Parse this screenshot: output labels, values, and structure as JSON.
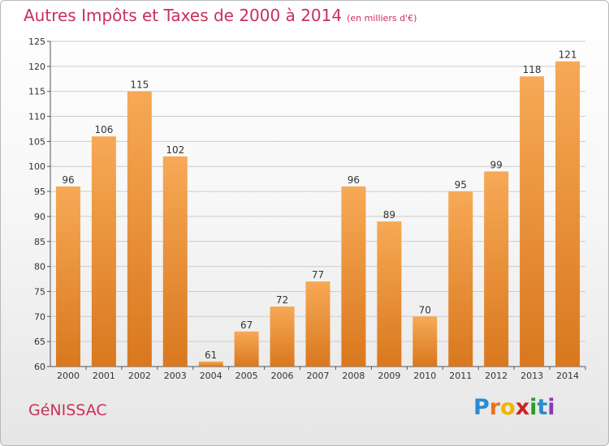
{
  "header": {
    "title": "Autres Impôts et Taxes de 2000 à 2014",
    "unit": "(en milliers d'€)"
  },
  "footer": {
    "commune": "GéNISSAC",
    "logo": {
      "letters": [
        "P",
        "r",
        "o",
        "x",
        "i",
        "t",
        "i"
      ],
      "colors": [
        "#2a8ad0",
        "#e8731c",
        "#f2b300",
        "#d02020",
        "#2a9a2a",
        "#2a8ad0",
        "#8a3ab0"
      ]
    }
  },
  "colors": {
    "bar_light": "#f7a956",
    "bar_dark": "#d9781e",
    "grid": "#cccccc",
    "title": "#c8305a"
  },
  "chart_data": {
    "type": "bar",
    "categories": [
      "2000",
      "2001",
      "2002",
      "2003",
      "2004",
      "2005",
      "2006",
      "2007",
      "2008",
      "2009",
      "2010",
      "2011",
      "2012",
      "2013",
      "2014"
    ],
    "values": [
      96,
      106,
      115,
      102,
      61,
      67,
      72,
      77,
      96,
      89,
      70,
      95,
      99,
      118,
      121
    ],
    "ylim": [
      60,
      125
    ],
    "yticks": [
      60,
      65,
      70,
      75,
      80,
      85,
      90,
      95,
      100,
      105,
      110,
      115,
      120,
      125
    ],
    "grid": true,
    "legend": "none"
  }
}
